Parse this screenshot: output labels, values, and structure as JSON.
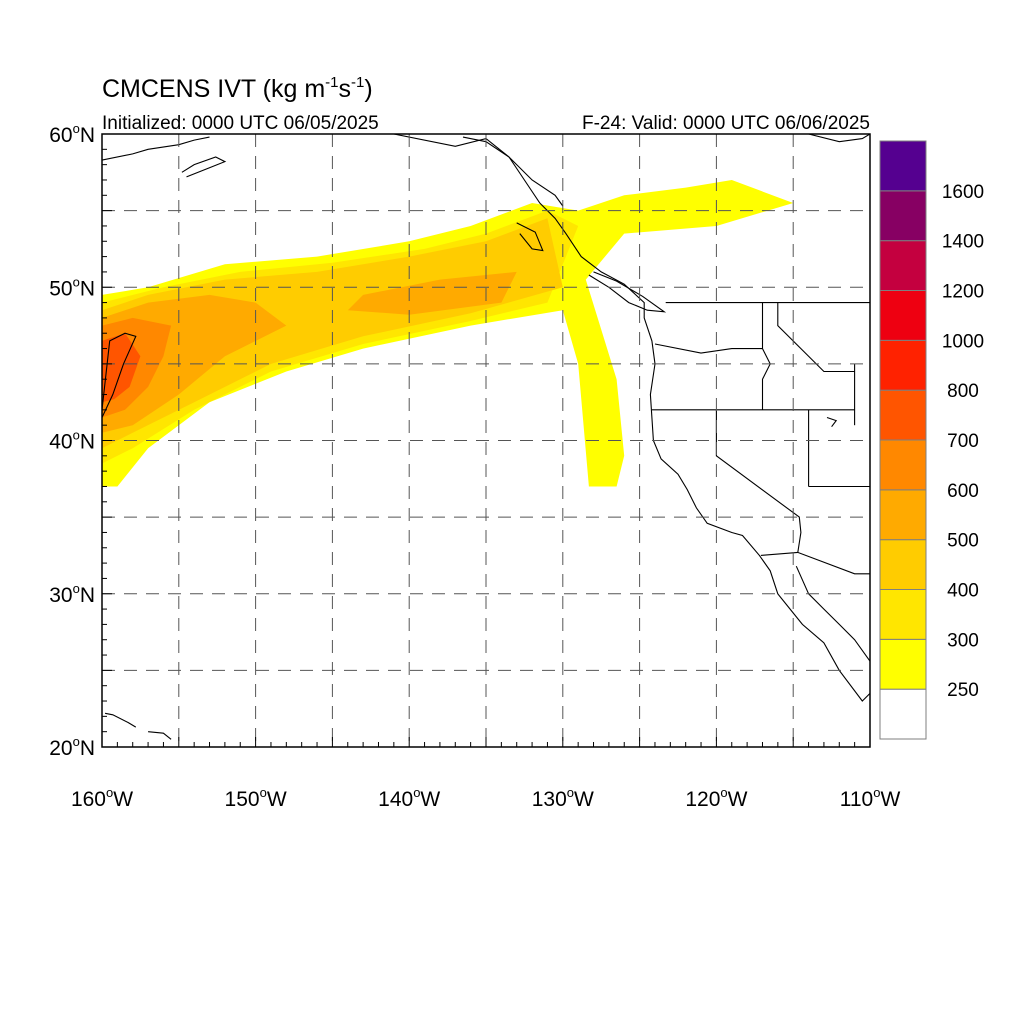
{
  "header": {
    "title_main": "CMCENS IVT (kg m",
    "title_exp1": "-1",
    "title_mid": "s",
    "title_exp2": "-1",
    "title_end": ")",
    "init_label": "Initialized: 0000 UTC 06/05/2025",
    "valid_label": "F-24: Valid: 0000 UTC 06/06/2025"
  },
  "map": {
    "lon_range": [
      -160,
      -110
    ],
    "lat_range": [
      20,
      60
    ],
    "grid": "dashed",
    "lat_labels": [
      {
        "lat": 60,
        "num": "60",
        "deg": "o",
        "hem": "N"
      },
      {
        "lat": 50,
        "num": "50",
        "deg": "o",
        "hem": "N"
      },
      {
        "lat": 40,
        "num": "40",
        "deg": "o",
        "hem": "N"
      },
      {
        "lat": 30,
        "num": "30",
        "deg": "o",
        "hem": "N"
      },
      {
        "lat": 20,
        "num": "20",
        "deg": "o",
        "hem": "N"
      }
    ],
    "lon_labels": [
      {
        "lon": -160,
        "num": "160",
        "deg": "o",
        "hem": "W"
      },
      {
        "lon": -150,
        "num": "150",
        "deg": "o",
        "hem": "W"
      },
      {
        "lon": -140,
        "num": "140",
        "deg": "o",
        "hem": "W"
      },
      {
        "lon": -130,
        "num": "130",
        "deg": "o",
        "hem": "W"
      },
      {
        "lon": -120,
        "num": "120",
        "deg": "o",
        "hem": "W"
      },
      {
        "lon": -110,
        "num": "110",
        "deg": "o",
        "hem": "W"
      }
    ]
  },
  "colorbar": {
    "colors": [
      "#ffffff",
      "#ffff00",
      "#ffe600",
      "#ffcc00",
      "#ffaa00",
      "#ff8800",
      "#ff5500",
      "#ff2200",
      "#ee0011",
      "#c4003f",
      "#870063",
      "#550090"
    ],
    "labels": [
      "250",
      "300",
      "400",
      "500",
      "600",
      "700",
      "800",
      "1000",
      "1200",
      "1400",
      "1600"
    ]
  },
  "ivt_fields": [
    {
      "name": "main-plume-250",
      "color": "#ffff00",
      "points": [
        [
          -160,
          37
        ],
        [
          -160,
          49.5
        ],
        [
          -157,
          50
        ],
        [
          -152,
          51.5
        ],
        [
          -146,
          52
        ],
        [
          -140,
          53
        ],
        [
          -136,
          54
        ],
        [
          -132,
          55.5
        ],
        [
          -129,
          55
        ],
        [
          -126,
          56
        ],
        [
          -122,
          56.5
        ],
        [
          -119,
          57
        ],
        [
          -115,
          55.5
        ],
        [
          -120,
          54
        ],
        [
          -126,
          53.5
        ],
        [
          -128.5,
          50.5
        ],
        [
          -126.5,
          44
        ],
        [
          -126,
          39
        ],
        [
          -126.5,
          37
        ],
        [
          -128.3,
          37
        ],
        [
          -129,
          45
        ],
        [
          -130,
          48.5
        ],
        [
          -136,
          47.5
        ],
        [
          -143,
          46
        ],
        [
          -148,
          44.5
        ],
        [
          -153,
          42.5
        ],
        [
          -157,
          39.5
        ],
        [
          -159,
          37
        ]
      ]
    },
    {
      "name": "main-plume-300",
      "color": "#ffe600",
      "points": [
        [
          -160,
          38.5
        ],
        [
          -160,
          49
        ],
        [
          -156,
          50
        ],
        [
          -151,
          51
        ],
        [
          -145,
          51.6
        ],
        [
          -139,
          52.5
        ],
        [
          -135,
          53.5
        ],
        [
          -131,
          55
        ],
        [
          -129,
          54
        ],
        [
          -131,
          49
        ],
        [
          -136,
          47.8
        ],
        [
          -143,
          46.3
        ],
        [
          -149,
          44.5
        ],
        [
          -154,
          42
        ],
        [
          -158,
          39.5
        ]
      ]
    },
    {
      "name": "main-plume-400",
      "color": "#ffcc00",
      "points": [
        [
          -160,
          39.5
        ],
        [
          -160,
          48.5
        ],
        [
          -157,
          49.5
        ],
        [
          -152,
          50.5
        ],
        [
          -146,
          51
        ],
        [
          -140,
          52
        ],
        [
          -135,
          53
        ],
        [
          -131,
          54.5
        ],
        [
          -130,
          50
        ],
        [
          -136,
          48.3
        ],
        [
          -143,
          46.8
        ],
        [
          -149,
          45
        ],
        [
          -154,
          42.5
        ],
        [
          -158,
          40.5
        ]
      ]
    },
    {
      "name": "main-plume-500",
      "color": "#ffaa00",
      "points": [
        [
          -160,
          40.5
        ],
        [
          -160,
          48
        ],
        [
          -157,
          49
        ],
        [
          -153,
          49.5
        ],
        [
          -150,
          49
        ],
        [
          -148,
          47.5
        ],
        [
          -152,
          45.5
        ],
        [
          -155,
          43
        ],
        [
          -158,
          41
        ]
      ]
    },
    {
      "name": "embedded-500",
      "color": "#ffaa00",
      "points": [
        [
          -143,
          49.5
        ],
        [
          -138,
          50.5
        ],
        [
          -133,
          51
        ],
        [
          -134,
          49
        ],
        [
          -140,
          48.2
        ],
        [
          -144,
          48.5
        ]
      ]
    },
    {
      "name": "main-plume-600",
      "color": "#ff8800",
      "points": [
        [
          -160,
          41.5
        ],
        [
          -160,
          47.5
        ],
        [
          -158,
          48
        ],
        [
          -155.5,
          47.5
        ],
        [
          -156,
          45.5
        ],
        [
          -157,
          43.5
        ],
        [
          -158.5,
          42
        ]
      ]
    },
    {
      "name": "main-plume-700",
      "color": "#ff5500",
      "points": [
        [
          -160,
          42.5
        ],
        [
          -160,
          46.5
        ],
        [
          -158.5,
          47
        ],
        [
          -157.5,
          45.5
        ],
        [
          -158.2,
          43.5
        ],
        [
          -159.2,
          42.7
        ]
      ]
    }
  ],
  "boundaries": [
    {
      "name": "hawaii-big-island",
      "points": [
        [
          -160,
          42
        ],
        [
          -159.5,
          46.5
        ],
        [
          -158.5,
          47
        ],
        [
          -157.8,
          46.8
        ],
        [
          -158.6,
          45
        ],
        [
          -159.3,
          43
        ],
        [
          -160,
          41.5
        ]
      ]
    },
    {
      "name": "west-coast",
      "points": [
        [
          -136.5,
          59.8
        ],
        [
          -135,
          59.5
        ],
        [
          -133.5,
          58.5
        ],
        [
          -132.5,
          57
        ],
        [
          -131.5,
          55.5
        ],
        [
          -130.5,
          54.5
        ],
        [
          -129.8,
          53.5
        ],
        [
          -128.8,
          52
        ],
        [
          -127.5,
          51
        ],
        [
          -126,
          50.2
        ],
        [
          -124.7,
          49
        ],
        [
          -124.7,
          48
        ],
        [
          -124.2,
          46.5
        ],
        [
          -124,
          45
        ],
        [
          -124.3,
          43
        ],
        [
          -124.2,
          41.5
        ],
        [
          -124.1,
          40
        ],
        [
          -123.6,
          38.8
        ],
        [
          -122.5,
          37.8
        ],
        [
          -121.9,
          36.8
        ],
        [
          -121.3,
          35.6
        ],
        [
          -120.6,
          34.6
        ],
        [
          -119,
          34
        ],
        [
          -118.3,
          33.8
        ],
        [
          -117.2,
          32.5
        ],
        [
          -116.5,
          31.5
        ],
        [
          -116,
          30
        ],
        [
          -115.2,
          29
        ],
        [
          -114.4,
          28
        ],
        [
          -113,
          26.8
        ],
        [
          -112,
          25
        ],
        [
          -110.5,
          23
        ],
        [
          -110,
          23.5
        ]
      ]
    },
    {
      "name": "gulf-of-california",
      "points": [
        [
          -114.8,
          31.8
        ],
        [
          -114,
          30
        ],
        [
          -113,
          29
        ],
        [
          -112,
          28
        ],
        [
          -111,
          27
        ],
        [
          -110,
          25.6
        ]
      ]
    },
    {
      "name": "vancouver-island",
      "points": [
        [
          -128.3,
          50.8
        ],
        [
          -127,
          50
        ],
        [
          -125.7,
          49
        ],
        [
          -124.5,
          48.5
        ],
        [
          -123.4,
          48.4
        ],
        [
          -124.8,
          49.4
        ],
        [
          -126.5,
          50.4
        ],
        [
          -128,
          51
        ]
      ]
    },
    {
      "name": "haida-gwaii",
      "points": [
        [
          -133,
          54.2
        ],
        [
          -131.8,
          53.6
        ],
        [
          -131.3,
          52.4
        ],
        [
          -132,
          52.5
        ],
        [
          -132.8,
          53.5
        ]
      ]
    },
    {
      "name": "canada-us-border",
      "points": [
        [
          -123.3,
          49
        ],
        [
          -110,
          49
        ]
      ]
    },
    {
      "name": "alaska-panhandle-border",
      "points": [
        [
          -141,
          60
        ],
        [
          -137,
          59.2
        ],
        [
          -135,
          59.7
        ],
        [
          -133.5,
          58.5
        ],
        [
          -132,
          57
        ],
        [
          -130.5,
          56
        ],
        [
          -130,
          55.3
        ]
      ]
    },
    {
      "name": "wa-or-border",
      "points": [
        [
          -124,
          46.3
        ],
        [
          -121,
          45.7
        ],
        [
          -119,
          46
        ],
        [
          -117,
          46
        ]
      ]
    },
    {
      "name": "wa-id-border",
      "points": [
        [
          -117,
          49
        ],
        [
          -117,
          46
        ]
      ]
    },
    {
      "name": "id-mt-border",
      "points": [
        [
          -116,
          49
        ],
        [
          -116,
          47.5
        ],
        [
          -114.5,
          46
        ],
        [
          -113,
          44.5
        ],
        [
          -111,
          44.5
        ]
      ]
    },
    {
      "name": "or-id-border",
      "points": [
        [
          -117,
          46
        ],
        [
          -116.5,
          45
        ],
        [
          -117,
          44
        ],
        [
          -117,
          42
        ]
      ]
    },
    {
      "name": "ca-or-nv-border",
      "points": [
        [
          -124.2,
          42
        ],
        [
          -111,
          42
        ]
      ]
    },
    {
      "name": "ca-nv-border",
      "points": [
        [
          -120,
          42
        ],
        [
          -120,
          39
        ],
        [
          -114.6,
          35
        ],
        [
          -114.5,
          34
        ],
        [
          -114.7,
          32.7
        ]
      ]
    },
    {
      "name": "nv-ut-border",
      "points": [
        [
          -114,
          42
        ],
        [
          -114,
          37
        ]
      ]
    },
    {
      "name": "az-ut-border",
      "points": [
        [
          -114,
          37
        ],
        [
          -110,
          37
        ]
      ]
    },
    {
      "name": "wy-id-border",
      "points": [
        [
          -111,
          45
        ],
        [
          -111,
          41
        ]
      ]
    },
    {
      "name": "us-mexico-border",
      "points": [
        [
          -117.1,
          32.5
        ],
        [
          -114.7,
          32.7
        ],
        [
          -111,
          31.3
        ],
        [
          -110,
          31.3
        ]
      ]
    },
    {
      "name": "alaska-coast-west",
      "points": [
        [
          -160,
          58.3
        ],
        [
          -158,
          58.7
        ],
        [
          -157,
          59
        ],
        [
          -155,
          59.3
        ],
        [
          -154,
          59.6
        ],
        [
          -153,
          59.8
        ]
      ]
    },
    {
      "name": "kodiak-island",
      "points": [
        [
          -154.5,
          57.2
        ],
        [
          -153,
          57.8
        ],
        [
          -152,
          58.2
        ],
        [
          -152.6,
          58.5
        ],
        [
          -154,
          58
        ],
        [
          -154.8,
          57.5
        ]
      ]
    },
    {
      "name": "hawaii-islands",
      "points": [
        [
          -159.8,
          22.2
        ],
        [
          -159.3,
          22.1
        ],
        [
          -158.3,
          21.6
        ],
        [
          -157.8,
          21.3
        ]
      ]
    },
    {
      "name": "hawaii-maui",
      "points": [
        [
          -157,
          21
        ],
        [
          -156,
          20.9
        ],
        [
          -155.5,
          20.5
        ]
      ]
    },
    {
      "name": "great-salt-lake",
      "points": [
        [
          -112.8,
          41.5
        ],
        [
          -112.2,
          41.3
        ],
        [
          -112.5,
          40.9
        ]
      ]
    },
    {
      "name": "alaska-coast-east",
      "points": [
        [
          -114,
          60
        ],
        [
          -112,
          59.5
        ],
        [
          -110.5,
          59.7
        ],
        [
          -110,
          60
        ]
      ]
    }
  ]
}
